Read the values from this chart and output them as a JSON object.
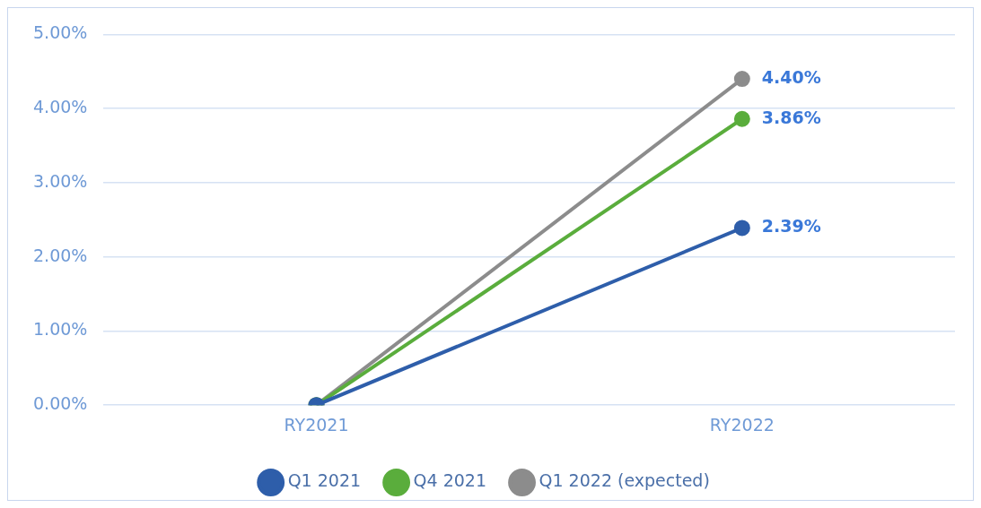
{
  "chart_data": {
    "type": "line",
    "categories": [
      "RY2021",
      "RY2022"
    ],
    "series": [
      {
        "name": "Q1 2021",
        "color": "#2e5eaa",
        "values": [
          0,
          2.39
        ],
        "value_labels": [
          null,
          "2.39%"
        ]
      },
      {
        "name": "Q4 2021",
        "color": "#5aad3c",
        "values": [
          0,
          3.86
        ],
        "value_labels": [
          null,
          "3.86%"
        ]
      },
      {
        "name": "Q1 2022 (expected)",
        "color": "#8c8c8c",
        "values": [
          0,
          4.4
        ],
        "value_labels": [
          null,
          "4.40%"
        ]
      }
    ],
    "ylim": [
      0,
      5
    ],
    "yticks": [
      {
        "value": 0,
        "label": "0.00%"
      },
      {
        "value": 1,
        "label": "1.00%"
      },
      {
        "value": 2,
        "label": "2.00%"
      },
      {
        "value": 3,
        "label": "3.00%"
      },
      {
        "value": 4,
        "label": "4.00%"
      },
      {
        "value": 5,
        "label": "5.00%"
      }
    ],
    "grid": "y",
    "legend": "bottom",
    "marker": "circle",
    "line_style": "solid"
  }
}
